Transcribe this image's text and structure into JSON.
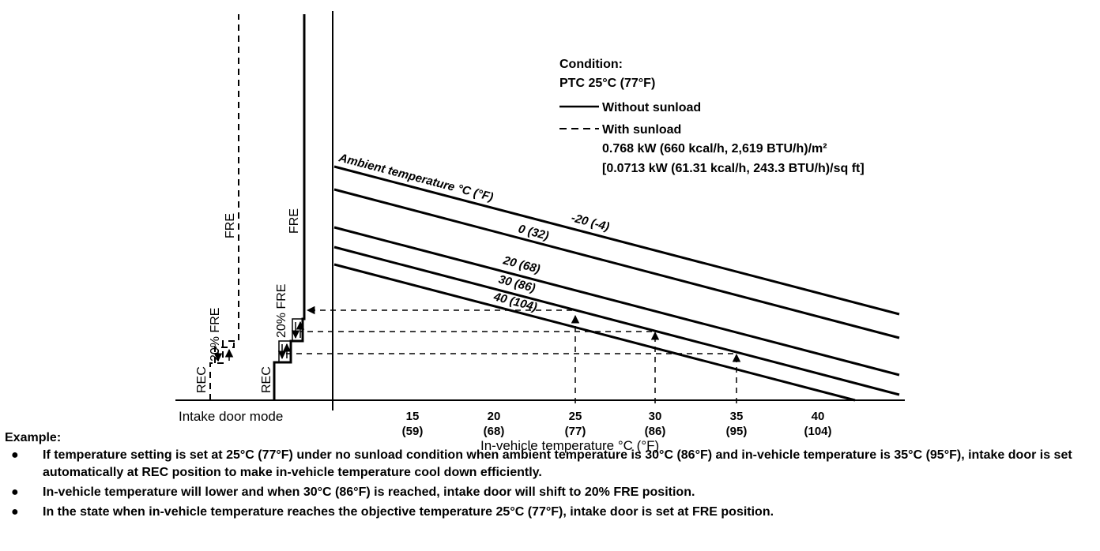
{
  "condition": {
    "title": "Condition:",
    "ptc": "PTC 25°C (77°F)",
    "without_label": "Without sunload",
    "with_label": "With sunload",
    "with_value_1": "0.768 kW (660 kcal/h, 2,619 BTU/h)/m²",
    "with_value_2": "[0.0713 kW (61.31 kcal/h, 243.3 BTU/h)/sq ft]"
  },
  "chart_data": {
    "type": "line",
    "xlabel": "In-vehicle temperature °C (°F)",
    "x_ticks": [
      {
        "c": "15",
        "f": "(59)"
      },
      {
        "c": "20",
        "f": "(68)"
      },
      {
        "c": "25",
        "f": "(77)"
      },
      {
        "c": "30",
        "f": "(86)"
      },
      {
        "c": "35",
        "f": "(95)"
      },
      {
        "c": "40",
        "f": "(104)"
      }
    ],
    "curve_family_label": "Ambient temperature °C (°F)",
    "curves": [
      {
        "name": "-20 (-4)",
        "style": "solid"
      },
      {
        "name": "0 (32)",
        "style": "solid"
      },
      {
        "name": "20 (68)",
        "style": "solid"
      },
      {
        "name": "30 (86)",
        "style": "solid"
      },
      {
        "name": "40 (104)",
        "style": "solid"
      }
    ],
    "mode_axis_label": "Intake door mode",
    "modes_solid": [
      "REC",
      "20% FRE",
      "FRE"
    ],
    "modes_dashed": [
      "REC",
      "20% FRE",
      "FRE"
    ],
    "example_points": [
      {
        "in_vehicle_c": 25,
        "mode": "FRE"
      },
      {
        "in_vehicle_c": 30,
        "mode": "20% FRE"
      },
      {
        "in_vehicle_c": 35,
        "mode": "REC"
      }
    ]
  },
  "example": {
    "title": "Example:",
    "bullet_glyph": "●",
    "items": [
      "If temperature setting is set at 25°C (77°F) under no sunload condition when ambient temperature is 30°C (86°F) and in-vehicle temperature is 35°C (95°F), intake door is set automatically at REC position to make in-vehicle temperature cool down efficiently.",
      "In-vehicle temperature will lower and when 30°C (86°F) is reached, intake door will shift to 20% FRE position.",
      "In the state when in-vehicle temperature reaches the objective temperature 25°C (77°F), intake door is set at FRE position."
    ]
  }
}
